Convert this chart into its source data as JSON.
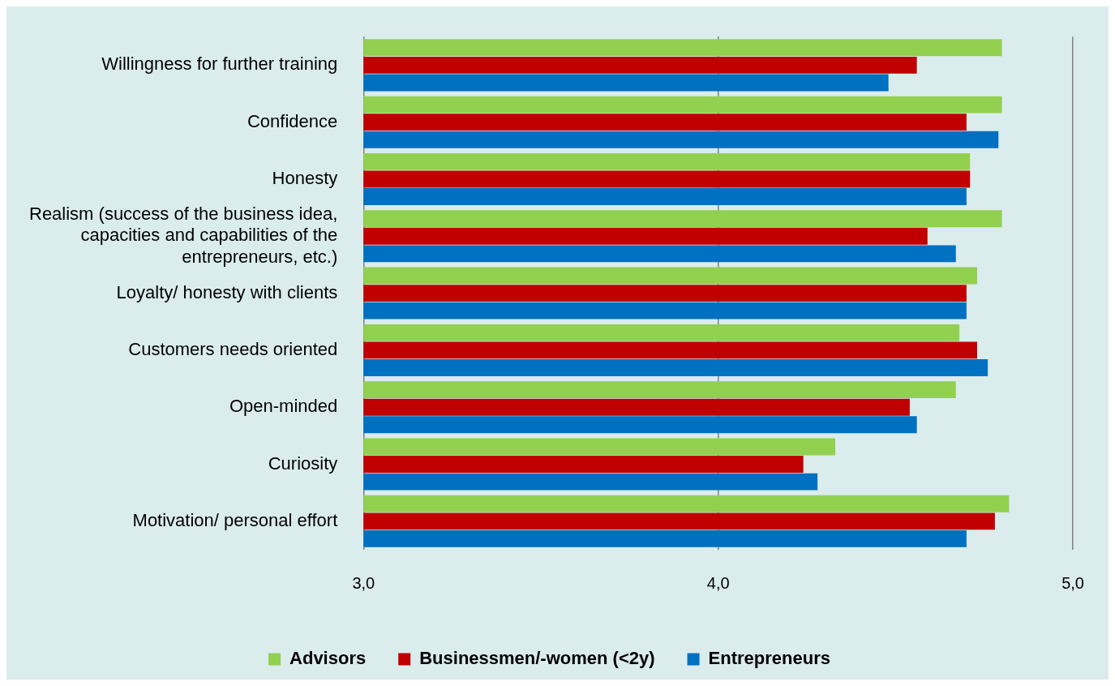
{
  "chart_data": {
    "type": "bar",
    "orientation": "horizontal",
    "categories": [
      "Willingness for further training",
      "Confidence",
      "Honesty",
      "Realism (success of the business idea, capacities and capabilities of the entrepreneurs, etc.)",
      "Loyalty/ honesty with clients",
      "Customers needs oriented",
      "Open-minded",
      "Curiosity",
      "Motivation/ personal effort"
    ],
    "series": [
      {
        "name": "Advisors",
        "color": "#92d050",
        "values": [
          4.8,
          4.8,
          4.71,
          4.8,
          4.73,
          4.68,
          4.67,
          4.33,
          4.82
        ]
      },
      {
        "name": "Businessmen/-women (<2y)",
        "color": "#c00000",
        "values": [
          4.56,
          4.7,
          4.71,
          4.59,
          4.7,
          4.73,
          4.54,
          4.24,
          4.78
        ]
      },
      {
        "name": "Entrepreneurs",
        "color": "#0070c0",
        "values": [
          4.48,
          4.79,
          4.7,
          4.67,
          4.7,
          4.76,
          4.56,
          4.28,
          4.7
        ]
      }
    ],
    "xlim": [
      3,
      5
    ],
    "xticks": [
      {
        "value": 3,
        "label": "3,0"
      },
      {
        "value": 4,
        "label": "4,0"
      },
      {
        "value": 5,
        "label": "5,0"
      }
    ],
    "grid": "x",
    "legend": "bottom"
  }
}
